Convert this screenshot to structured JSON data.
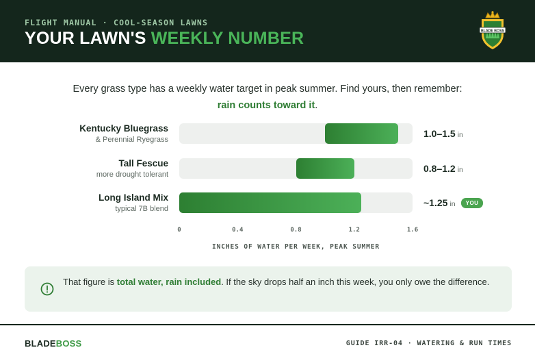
{
  "header": {
    "eyebrow": "FLIGHT MANUAL · COOL-SEASON LAWNS",
    "title_main": "YOUR LAWN'S ",
    "title_accent": "WEEKLY NUMBER",
    "logo_text": "BLADE BOSS"
  },
  "intro": {
    "text": "Every grass type has a weekly water target in peak summer. Find yours, then remember:",
    "emphasis": "rain counts toward it",
    "end": "."
  },
  "chart_data": {
    "type": "bar",
    "orientation": "horizontal-range",
    "xlabel": "INCHES OF WATER PER WEEK, PEAK SUMMER",
    "xlim": [
      0,
      1.6
    ],
    "ticks": [
      "0",
      "0.4",
      "0.8",
      "1.2",
      "1.6"
    ],
    "tick_values": [
      0,
      0.4,
      0.8,
      1.2,
      1.6
    ],
    "categories": [
      "Kentucky Bluegrass",
      "Tall Fescue",
      "Long Island Mix"
    ],
    "subtitles": [
      "& Perennial Ryegrass",
      "more drought tolerant",
      "typical 7B blend"
    ],
    "ranges": [
      [
        1.0,
        1.5
      ],
      [
        0.8,
        1.2
      ],
      [
        0,
        1.25
      ]
    ],
    "value_labels": [
      "1.0–1.5",
      "0.8–1.2",
      "~1.25"
    ],
    "unit": "in",
    "highlight_label": "YOU",
    "highlight_index": 2,
    "grid": false,
    "colors": {
      "bar_start": "#2d7f32",
      "bar_end": "#4cb058",
      "track": "#eef0ee"
    }
  },
  "note": {
    "text_before": "That figure is ",
    "emphasis": "total water, rain included",
    "text_after": ". If the sky drops half an inch this week, you only owe the difference.",
    "icon": "info-icon"
  },
  "footer": {
    "brand_main": "BLADE",
    "brand_accent": "BOSS",
    "guide": "GUIDE IRR-04 · WATERING & RUN TIMES"
  },
  "colors": {
    "header_bg": "#14261c",
    "accent_green": "#4ab559",
    "emphasis_green": "#2f7d34",
    "note_bg": "#ebf3ec"
  }
}
